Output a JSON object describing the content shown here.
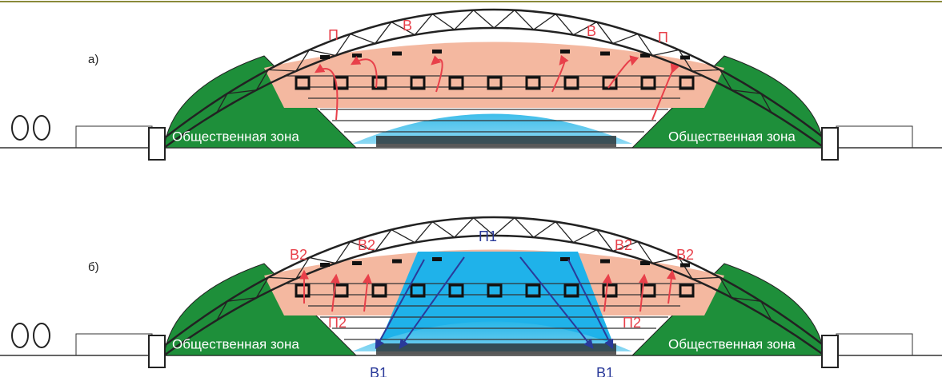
{
  "panels": [
    {
      "label": "а)",
      "flow_labels": [
        "П",
        "В",
        "В",
        "П"
      ],
      "zones": [
        "Общественная зона",
        "Общественная зона"
      ]
    },
    {
      "label": "б)",
      "flow_labels": [
        "В2",
        "В2",
        "В2",
        "В2"
      ],
      "supply_label": "П1",
      "inner_labels": [
        "П2",
        "П2"
      ],
      "exhaust_labels": [
        "В1",
        "В1"
      ],
      "zones": [
        "Общественная зона",
        "Общественная зона"
      ]
    }
  ]
}
